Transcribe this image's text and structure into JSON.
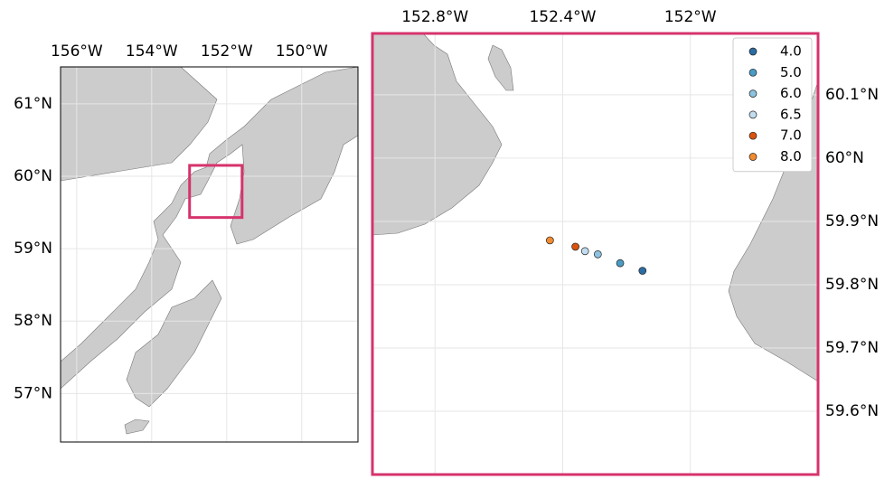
{
  "chart_data": [
    {
      "type": "map",
      "xlim": [
        -156.43,
        -148.5
      ],
      "ylim": [
        56.33,
        61.51
      ],
      "xticks": [
        {
          "value": -156,
          "label": "156°W"
        },
        {
          "value": -154,
          "label": "154°W"
        },
        {
          "value": -152,
          "label": "152°W"
        },
        {
          "value": -150,
          "label": "150°W"
        }
      ],
      "yticks": [
        {
          "value": 57,
          "label": "57°N"
        },
        {
          "value": 58,
          "label": "58°N"
        },
        {
          "value": 59,
          "label": "59°N"
        },
        {
          "value": 60,
          "label": "60°N"
        },
        {
          "value": 61,
          "label": "61°N"
        }
      ],
      "grid": true,
      "inset_box": {
        "x": [
          -152.99,
          -151.59
        ],
        "y": [
          59.43,
          60.15
        ],
        "color": "#d6336c"
      }
    },
    {
      "type": "scatter",
      "xlim": [
        -152.996,
        -151.6
      ],
      "ylim": [
        59.5,
        60.197
      ],
      "xticks": [
        {
          "value": -152.8,
          "label": "152.8°W"
        },
        {
          "value": -152.4,
          "label": "152.4°W"
        },
        {
          "value": -152,
          "label": "152°W"
        }
      ],
      "yticks": [
        {
          "value": 59.6,
          "label": "59.6°N"
        },
        {
          "value": 59.7,
          "label": "59.7°N"
        },
        {
          "value": 59.8,
          "label": "59.8°N"
        },
        {
          "value": 59.9,
          "label": "59.9°N"
        },
        {
          "value": 60,
          "label": "60°N"
        },
        {
          "value": 60.1,
          "label": "60.1°N"
        }
      ],
      "grid": true,
      "frame_color": "#d6336c",
      "legend": "upper right",
      "series": [
        {
          "name": "4.0",
          "color": "#2b6ca3",
          "x": [
            -152.15
          ],
          "y": [
            59.822
          ]
        },
        {
          "name": "5.0",
          "color": "#4a9cc4",
          "x": [
            -152.22
          ],
          "y": [
            59.834
          ]
        },
        {
          "name": "6.0",
          "color": "#8cc3e0",
          "x": [
            -152.29
          ],
          "y": [
            59.848
          ]
        },
        {
          "name": "6.5",
          "color": "#c2dcf0",
          "x": [
            -152.33
          ],
          "y": [
            59.853
          ]
        },
        {
          "name": "7.0",
          "color": "#d9530f",
          "x": [
            -152.36
          ],
          "y": [
            59.86
          ]
        },
        {
          "name": "8.0",
          "color": "#f28a30",
          "x": [
            -152.44
          ],
          "y": [
            59.87
          ]
        }
      ]
    }
  ]
}
